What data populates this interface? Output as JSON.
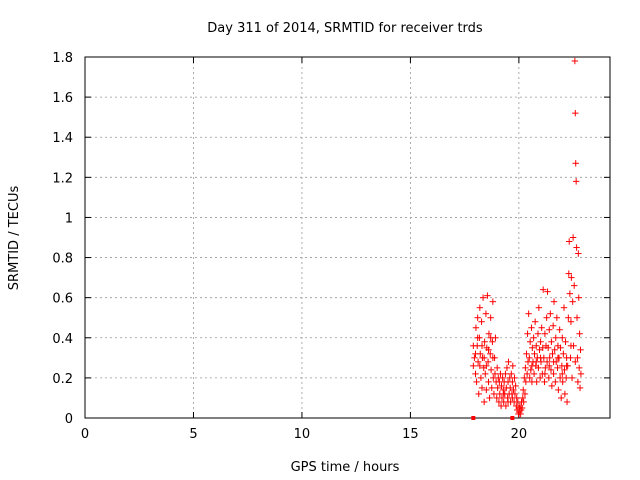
{
  "chart_data": {
    "type": "scatter",
    "title": "Day 311 of 2014, SRMTID for receiver trds",
    "xlabel": "GPS time / hours",
    "ylabel": "SRMTID / TECUs",
    "xlim": [
      0,
      24.2
    ],
    "ylim": [
      0,
      1.8
    ],
    "x_ticks": [
      0,
      5,
      10,
      15,
      20
    ],
    "x_tick_labels": [
      "0",
      "5",
      "10",
      "15",
      "20"
    ],
    "y_ticks": [
      0,
      0.2,
      0.4,
      0.6,
      0.8,
      1.0,
      1.2,
      1.4,
      1.6,
      1.8
    ],
    "y_tick_labels": [
      "0",
      "0.2",
      "0.4",
      "0.6",
      "0.8",
      "1",
      "1.2",
      "1.4",
      "1.6",
      "1.8"
    ],
    "grid": true,
    "marker": "+",
    "series": [
      {
        "name": "SRMTID",
        "color": "#ff0000",
        "points": [
          [
            17.9,
            0.36
          ],
          [
            17.95,
            0.3
          ],
          [
            18.0,
            0.22
          ],
          [
            18.02,
            0.45
          ],
          [
            18.05,
            0.18
          ],
          [
            18.08,
            0.36
          ],
          [
            18.1,
            0.5
          ],
          [
            18.12,
            0.28
          ],
          [
            18.15,
            0.12
          ],
          [
            18.18,
            0.4
          ],
          [
            18.2,
            0.55
          ],
          [
            18.22,
            0.32
          ],
          [
            18.25,
            0.2
          ],
          [
            18.28,
            0.48
          ],
          [
            18.3,
            0.15
          ],
          [
            18.32,
            0.3
          ],
          [
            18.35,
            0.6
          ],
          [
            18.38,
            0.25
          ],
          [
            18.4,
            0.08
          ],
          [
            18.42,
            0.38
          ],
          [
            18.45,
            0.22
          ],
          [
            18.48,
            0.52
          ],
          [
            18.5,
            0.14
          ],
          [
            18.52,
            0.35
          ],
          [
            18.55,
            0.61
          ],
          [
            18.58,
            0.28
          ],
          [
            18.6,
            0.18
          ],
          [
            18.62,
            0.42
          ],
          [
            18.65,
            0.1
          ],
          [
            18.68,
            0.32
          ],
          [
            18.7,
            0.5
          ],
          [
            18.72,
            0.24
          ],
          [
            18.75,
            0.15
          ],
          [
            18.78,
            0.38
          ],
          [
            18.8,
            0.58
          ],
          [
            18.82,
            0.2
          ],
          [
            18.85,
            0.12
          ],
          [
            18.88,
            0.3
          ],
          [
            18.9,
            0.22
          ],
          [
            18.92,
            0.4
          ],
          [
            18.95,
            0.18
          ],
          [
            18.98,
            0.1
          ],
          [
            19.0,
            0.25
          ],
          [
            19.02,
            0.15
          ],
          [
            19.05,
            0.2
          ],
          [
            19.08,
            0.08
          ],
          [
            19.1,
            0.18
          ],
          [
            19.12,
            0.12
          ],
          [
            19.15,
            0.22
          ],
          [
            19.18,
            0.06
          ],
          [
            19.2,
            0.16
          ],
          [
            19.22,
            0.1
          ],
          [
            19.25,
            0.2
          ],
          [
            19.28,
            0.14
          ],
          [
            19.3,
            0.08
          ],
          [
            19.32,
            0.18
          ],
          [
            19.35,
            0.12
          ],
          [
            19.38,
            0.22
          ],
          [
            19.4,
            0.06
          ],
          [
            19.42,
            0.15
          ],
          [
            19.45,
            0.25
          ],
          [
            19.48,
            0.1
          ],
          [
            19.5,
            0.18
          ],
          [
            19.52,
            0.28
          ],
          [
            19.55,
            0.12
          ],
          [
            19.58,
            0.2
          ],
          [
            19.6,
            0.15
          ],
          [
            19.62,
            0.08
          ],
          [
            19.65,
            0.22
          ],
          [
            19.68,
            0.12
          ],
          [
            19.7,
            0.18
          ],
          [
            19.72,
            0.26
          ],
          [
            19.75,
            0.14
          ],
          [
            19.78,
            0.08
          ],
          [
            19.8,
            0.2
          ],
          [
            19.82,
            0.12
          ],
          [
            19.85,
            0.16
          ],
          [
            19.88,
            0.06
          ],
          [
            19.9,
            0.1
          ],
          [
            19.92,
            0.04
          ],
          [
            19.95,
            0.08
          ],
          [
            19.98,
            0.02
          ],
          [
            20.0,
            0.05
          ],
          [
            20.02,
            0.03
          ],
          [
            20.05,
            0.06
          ],
          [
            20.08,
            0.02
          ],
          [
            20.1,
            0.04
          ],
          [
            20.12,
            0.08
          ],
          [
            20.15,
            0.05
          ],
          [
            20.18,
            0.1
          ],
          [
            20.2,
            0.14
          ],
          [
            20.22,
            0.08
          ],
          [
            20.25,
            0.2
          ],
          [
            20.28,
            0.12
          ],
          [
            20.3,
            0.25
          ],
          [
            20.32,
            0.18
          ],
          [
            20.35,
            0.32
          ],
          [
            20.38,
            0.22
          ],
          [
            20.4,
            0.42
          ],
          [
            20.42,
            0.28
          ],
          [
            20.45,
            0.52
          ],
          [
            20.48,
            0.3
          ],
          [
            20.5,
            0.2
          ],
          [
            20.52,
            0.38
          ],
          [
            20.55,
            0.24
          ],
          [
            20.58,
            0.45
          ],
          [
            20.6,
            0.18
          ],
          [
            20.62,
            0.35
          ],
          [
            20.65,
            0.28
          ],
          [
            20.68,
            0.4
          ],
          [
            20.7,
            0.22
          ],
          [
            20.72,
            0.32
          ],
          [
            20.75,
            0.48
          ],
          [
            20.78,
            0.26
          ],
          [
            20.8,
            0.36
          ],
          [
            20.82,
            0.18
          ],
          [
            20.85,
            0.3
          ],
          [
            20.88,
            0.42
          ],
          [
            20.9,
            0.25
          ],
          [
            20.92,
            0.55
          ],
          [
            20.95,
            0.34
          ],
          [
            20.98,
            0.2
          ],
          [
            21.0,
            0.38
          ],
          [
            21.02,
            0.28
          ],
          [
            21.05,
            0.45
          ],
          [
            21.08,
            0.22
          ],
          [
            21.1,
            0.35
          ],
          [
            21.12,
            0.64
          ],
          [
            21.15,
            0.3
          ],
          [
            21.18,
            0.18
          ],
          [
            21.2,
            0.42
          ],
          [
            21.22,
            0.25
          ],
          [
            21.25,
            0.36
          ],
          [
            21.28,
            0.5
          ],
          [
            21.3,
            0.28
          ],
          [
            21.32,
            0.63
          ],
          [
            21.35,
            0.35
          ],
          [
            21.38,
            0.2
          ],
          [
            21.4,
            0.44
          ],
          [
            21.42,
            0.3
          ],
          [
            21.45,
            0.52
          ],
          [
            21.48,
            0.24
          ],
          [
            21.5,
            0.38
          ],
          [
            21.52,
            0.16
          ],
          [
            21.55,
            0.32
          ],
          [
            21.58,
            0.46
          ],
          [
            21.6,
            0.22
          ],
          [
            21.62,
            0.58
          ],
          [
            21.65,
            0.34
          ],
          [
            21.68,
            0.18
          ],
          [
            21.7,
            0.4
          ],
          [
            21.72,
            0.28
          ],
          [
            21.75,
            0.5
          ],
          [
            21.78,
            0.25
          ],
          [
            21.8,
            0.36
          ],
          [
            21.82,
            0.14
          ],
          [
            21.85,
            0.3
          ],
          [
            21.88,
            0.44
          ],
          [
            21.9,
            0.2
          ],
          [
            21.92,
            0.35
          ],
          [
            21.95,
            0.1
          ],
          [
            21.98,
            0.26
          ],
          [
            22.0,
            0.4
          ],
          [
            22.02,
            0.18
          ],
          [
            22.05,
            0.32
          ],
          [
            22.08,
            0.55
          ],
          [
            22.1,
            0.24
          ],
          [
            22.12,
            0.12
          ],
          [
            22.15,
            0.38
          ],
          [
            22.18,
            0.2
          ],
          [
            22.2,
            0.3
          ],
          [
            22.22,
            0.08
          ],
          [
            22.25,
            0.26
          ],
          [
            22.28,
            0.5
          ],
          [
            22.3,
            0.72
          ],
          [
            22.32,
            0.88
          ],
          [
            22.35,
            0.62
          ],
          [
            22.38,
            0.3
          ],
          [
            22.4,
            0.48
          ],
          [
            22.42,
            0.7
          ],
          [
            22.45,
            0.2
          ],
          [
            22.48,
            0.58
          ],
          [
            22.5,
            0.9
          ],
          [
            22.52,
            0.36
          ],
          [
            22.55,
            0.66
          ],
          [
            22.58,
            1.78
          ],
          [
            22.6,
            1.52
          ],
          [
            22.62,
            1.27
          ],
          [
            22.64,
            1.18
          ],
          [
            22.66,
            0.85
          ],
          [
            22.68,
            0.5
          ],
          [
            22.7,
            0.3
          ],
          [
            22.72,
            0.18
          ],
          [
            22.74,
            0.82
          ],
          [
            22.76,
            0.6
          ],
          [
            22.78,
            0.25
          ],
          [
            22.8,
            0.42
          ],
          [
            22.82,
            0.15
          ],
          [
            22.84,
            0.34
          ],
          [
            22.86,
            0.22
          ],
          [
            17.9,
            0.26
          ],
          [
            18.0,
            0.32
          ],
          [
            18.1,
            0.4
          ],
          [
            18.2,
            0.26
          ],
          [
            18.3,
            0.36
          ],
          [
            18.4,
            0.3
          ],
          [
            18.5,
            0.26
          ],
          [
            18.6,
            0.34
          ],
          [
            18.7,
            0.4
          ],
          [
            18.8,
            0.3
          ],
          [
            19.3,
            0.12
          ],
          [
            19.5,
            0.08
          ],
          [
            19.7,
            0.1
          ],
          [
            20.6,
            0.26
          ],
          [
            20.8,
            0.28
          ],
          [
            21.0,
            0.3
          ],
          [
            21.2,
            0.22
          ],
          [
            21.4,
            0.26
          ],
          [
            21.6,
            0.28
          ],
          [
            21.8,
            0.3
          ],
          [
            22.0,
            0.22
          ],
          [
            22.2,
            0.26
          ],
          [
            22.4,
            0.36
          ],
          [
            22.6,
            0.28
          ]
        ]
      }
    ],
    "outlier_markers": [
      {
        "x": 17.9,
        "y": 0.0
      },
      {
        "x": 19.7,
        "y": 0.0
      }
    ]
  }
}
